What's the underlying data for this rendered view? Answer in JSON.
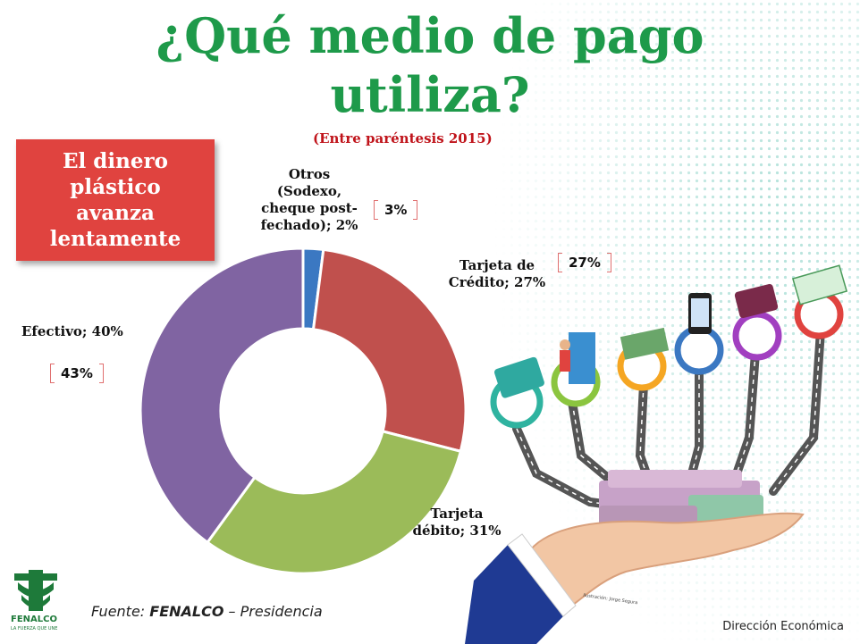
{
  "title_line1": "¿Qué medio de pago",
  "title_line2": "utiliza?",
  "subtitle": "(Entre paréntesis 2015)",
  "callout": {
    "line1": "El dinero",
    "line2": "plástico",
    "line3": "avanza",
    "line4": "lentamente"
  },
  "labels": {
    "otros": [
      "Otros",
      "(Sodexo,",
      "cheque post-",
      "fechado); 2%"
    ],
    "credito": [
      "Tarjeta de",
      "Crédito; 27%"
    ],
    "debito": [
      "Tarjeta",
      "débito; 31%"
    ],
    "efectivo": [
      "Efectivo; 40%"
    ]
  },
  "prev_2015": {
    "otros": "3%",
    "credito": "27%",
    "efectivo": "43%"
  },
  "footer": {
    "prefix": "Fuente: ",
    "org": "FENALCO",
    "suffix": " – Presidencia"
  },
  "department": "Dirección Económica",
  "logo": {
    "name": "FENALCO",
    "tagline": "LA FUERZA QUE UNE"
  },
  "illustration_credit": "Ilustración: Jorge Segura",
  "colors": {
    "title": "#1e9a4a",
    "subtitle": "#c0141b",
    "callout": "#e0433f"
  },
  "chart_data": {
    "type": "pie",
    "variant": "donut",
    "categories": [
      "Otros (Sodexo, cheque post-fechado)",
      "Tarjeta de Crédito",
      "Tarjeta débito",
      "Efectivo"
    ],
    "values": [
      2,
      27,
      31,
      40
    ],
    "previous_2015": [
      3,
      27,
      null,
      43
    ],
    "colors": [
      "#3b78c2",
      "#c0504d",
      "#9bbb59",
      "#8064a2"
    ],
    "unit": "%"
  }
}
